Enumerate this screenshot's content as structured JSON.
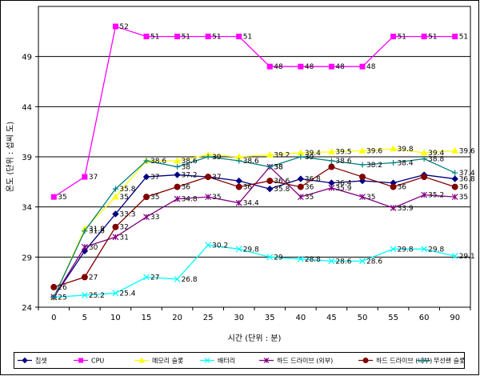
{
  "chart_data": {
    "type": "line",
    "x": [
      "0",
      "5",
      "10",
      "15",
      "20",
      "25",
      "30",
      "35",
      "40",
      "45",
      "50",
      "55",
      "60",
      "90"
    ],
    "xlabel": "시간 (단위 : 분)",
    "ylabel": "온도 (단위 : 섭씨 도)",
    "ylim": [
      24,
      54
    ],
    "yticks": [
      24,
      29,
      34,
      39,
      44,
      49
    ],
    "grid": true,
    "legend_position": "bottom",
    "series": [
      {
        "name": "칩셋",
        "color": "#000080",
        "marker": "diamond",
        "values": [
          25,
          29.6,
          33.3,
          37,
          37.2,
          37,
          36.6,
          35.8,
          36.8,
          36.4,
          36.6,
          36.4,
          37.2,
          36.8
        ],
        "labels": [
          "",
          "",
          "33.3",
          "37",
          "37.2",
          "",
          "",
          "35.8",
          "36.8",
          "36.4",
          "",
          "",
          "",
          "36.8"
        ]
      },
      {
        "name": "CPU",
        "color": "#FF00FF",
        "marker": "square",
        "values": [
          35,
          37,
          52,
          51,
          51,
          51,
          51,
          48,
          48,
          48,
          48,
          51,
          51,
          51
        ],
        "labels": [
          "35",
          "37",
          "52",
          "51",
          "51",
          "51",
          "51",
          "48",
          "48",
          "48",
          "48",
          "51",
          "51",
          "51"
        ]
      },
      {
        "name": "메모리 슬롯",
        "color": "#FFFF00",
        "marker": "triangle",
        "values": [
          25,
          31.8,
          35,
          38.6,
          38.6,
          39.2,
          39,
          39.2,
          39.4,
          39.5,
          39.6,
          39.8,
          39.4,
          39.6
        ],
        "labels": [
          "",
          "31.8",
          "35",
          "38.6",
          "38.6",
          "",
          "",
          "39.2",
          "39.4",
          "39.5",
          "39.6",
          "39.8",
          "39.4",
          "39.6"
        ]
      },
      {
        "name": "배터리",
        "color": "#00FFFF",
        "marker": "x",
        "values": [
          25,
          25.2,
          25.4,
          27,
          26.8,
          30.2,
          29.8,
          29,
          28.8,
          28.6,
          28.6,
          29.8,
          29.8,
          29.1
        ],
        "labels": [
          "",
          "25.2",
          "25.4",
          "27",
          "26.8",
          "30.2",
          "29.8",
          "29",
          "28.8",
          "28.6",
          "28.6",
          "29.8",
          "29.8",
          "29.1"
        ]
      },
      {
        "name": "하드 드라이브 (외부)",
        "color": "#800080",
        "marker": "star",
        "values": [
          25,
          30,
          31,
          33,
          34.8,
          35,
          34.4,
          38,
          35,
          35.9,
          35,
          33.9,
          35.2,
          35
        ],
        "labels": [
          "",
          "30",
          "31",
          "33",
          "34.8",
          "35",
          "34.4",
          "38",
          "35",
          "35.9",
          "35",
          "33.9",
          "35.2",
          "35"
        ]
      },
      {
        "name": "하드 드라이브 (내부)",
        "color": "#800000",
        "marker": "circle",
        "values": [
          26,
          27,
          32,
          35,
          36,
          37,
          36,
          36.6,
          36,
          38,
          37,
          36,
          37,
          36
        ],
        "labels": [
          "26",
          "27",
          "32",
          "35",
          "36",
          "37",
          "36",
          "36.6",
          "36",
          "",
          "",
          "36",
          "",
          "36"
        ]
      },
      {
        "name": "무선랜 슬롯",
        "color": "#008080",
        "marker": "plus",
        "values": [
          25,
          31.6,
          35.8,
          38.6,
          38,
          39,
          38.6,
          38,
          39,
          38.6,
          38.2,
          38.4,
          38.8,
          37.4
        ],
        "labels": [
          "25",
          "31.6",
          "35.8",
          "",
          "38",
          "39",
          "38.6",
          "38",
          "39",
          "38.6",
          "38.2",
          "38.4",
          "38.8",
          "37.4"
        ]
      }
    ]
  }
}
